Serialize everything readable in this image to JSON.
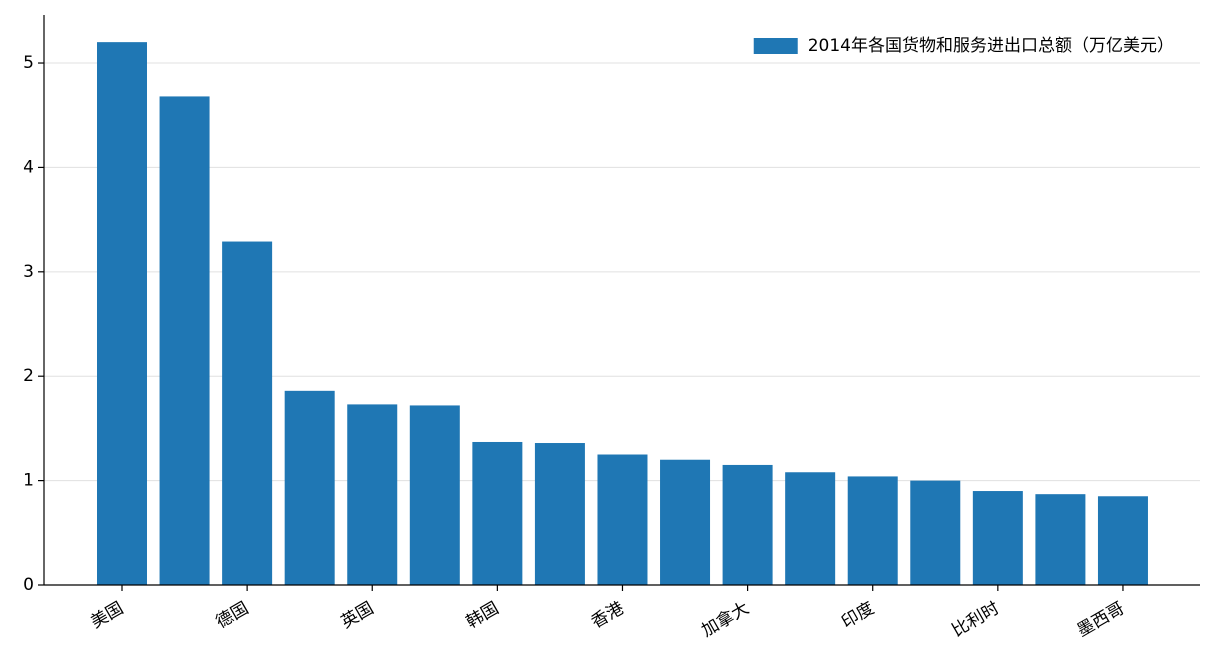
{
  "chart_data": {
    "type": "bar",
    "categories": [
      "美国",
      null,
      "德国",
      null,
      "英国",
      null,
      "韩国",
      null,
      "香港",
      null,
      "加拿大",
      null,
      "印度",
      null,
      "比利时",
      null,
      "墨西哥"
    ],
    "series": [
      {
        "name": "2014年各国货物和服务进出口总额（万亿美元）",
        "color": "#1f77b4",
        "values": [
          5.2,
          4.68,
          3.29,
          1.86,
          1.73,
          1.72,
          1.37,
          1.36,
          1.25,
          1.2,
          1.15,
          1.08,
          1.04,
          1.0,
          0.9,
          0.87,
          0.85
        ]
      }
    ],
    "ylim": [
      0,
      5.46
    ],
    "yticks": [
      0,
      1,
      2,
      3,
      4,
      5
    ],
    "grid": true,
    "legend": "upper right"
  }
}
